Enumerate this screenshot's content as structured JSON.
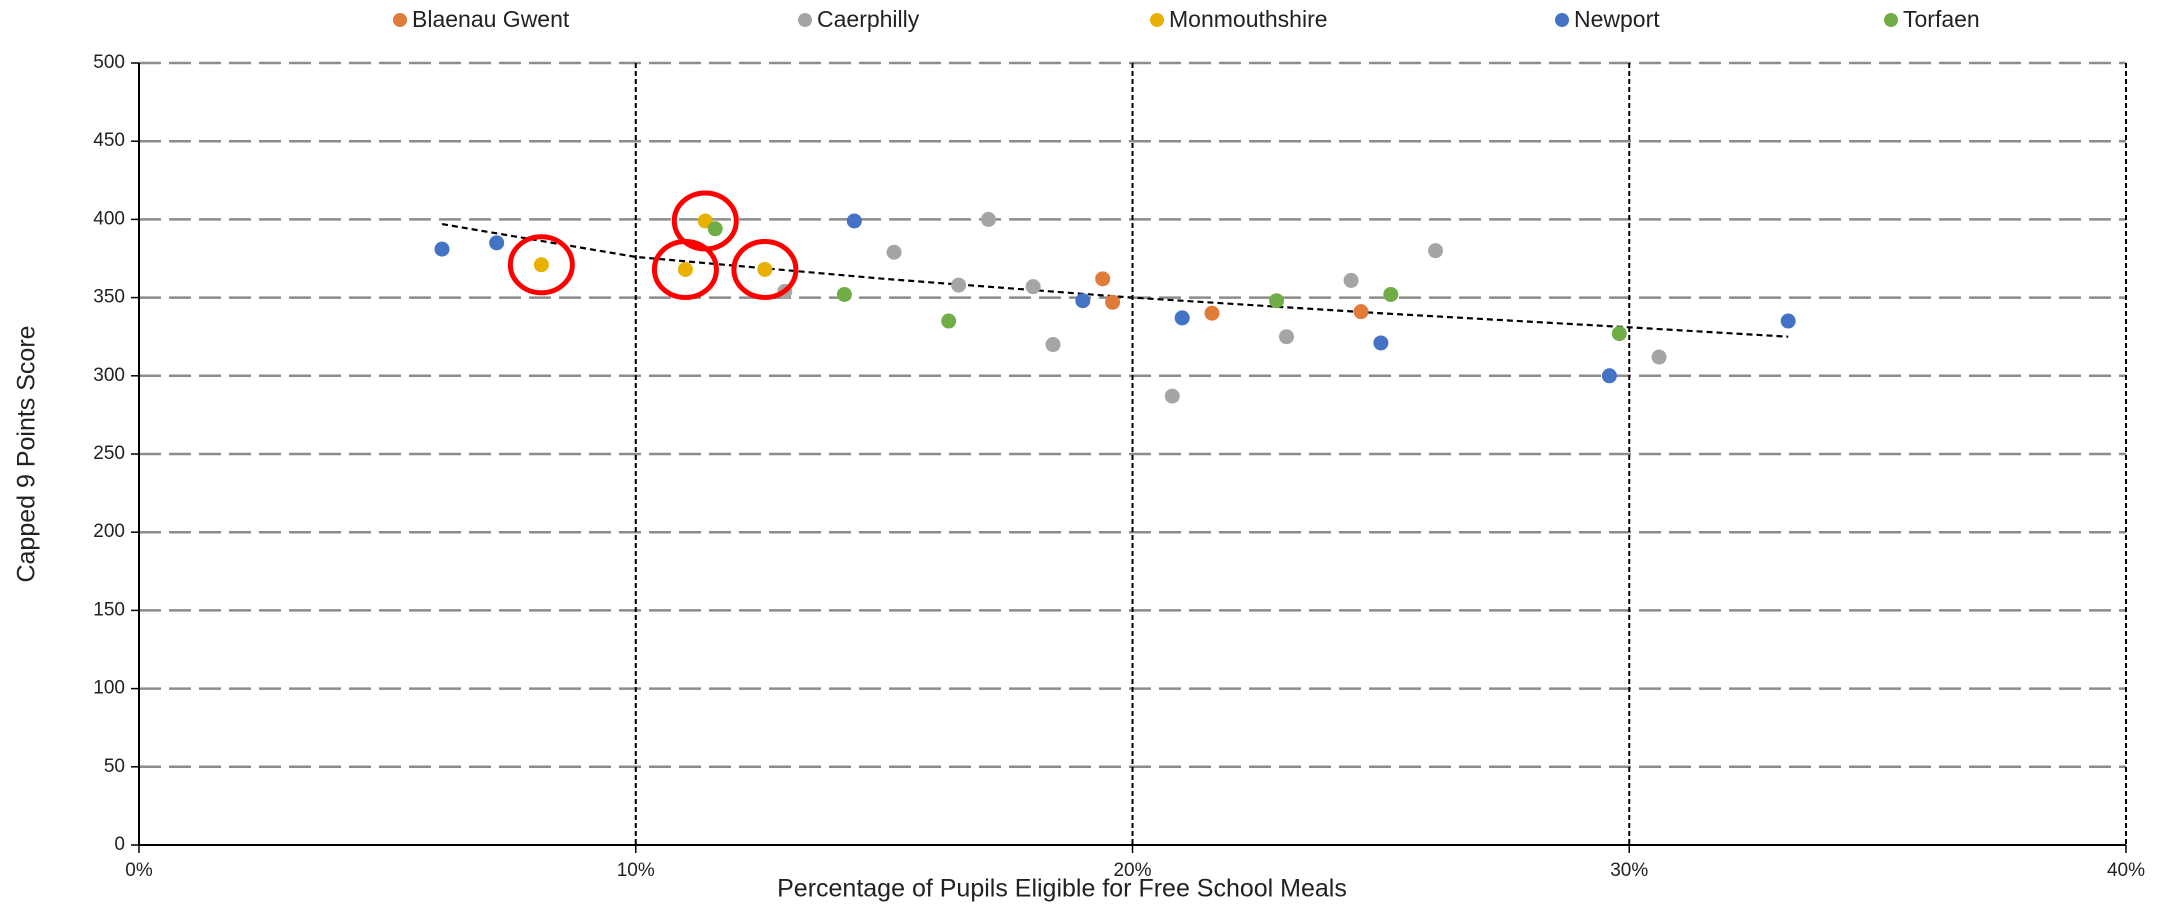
{
  "chart_data": {
    "type": "scatter",
    "xlabel": "Percentage of Pupils Eligible for Free School Meals",
    "ylabel": "Capped 9 Points Score",
    "xlim": [
      0,
      40
    ],
    "xticks": [
      {
        "value": 0,
        "label": "0%"
      },
      {
        "value": 10,
        "label": "10%"
      },
      {
        "value": 20,
        "label": "20%"
      },
      {
        "value": 30,
        "label": "30%"
      },
      {
        "value": 40,
        "label": "40%"
      }
    ],
    "ylim": [
      0,
      500
    ],
    "yticks": [
      0,
      50,
      100,
      150,
      200,
      250,
      300,
      350,
      400,
      450,
      500
    ],
    "grid": true,
    "legend": "top",
    "series": [
      {
        "name": "Blaenau Gwent",
        "color": "#e07b39",
        "x": [
          19.4,
          19.6,
          21.6,
          24.6
        ],
        "values": [
          362,
          347,
          340,
          341
        ]
      },
      {
        "name": "Caerphilly",
        "color": "#a5a5a5",
        "x": [
          15.2,
          17.1,
          16.5,
          18.0,
          18.4,
          13.0,
          20.8,
          23.1,
          24.4,
          26.1,
          30.6
        ],
        "values": [
          379,
          400,
          358,
          357,
          320,
          354,
          287,
          325,
          361,
          380,
          312
        ]
      },
      {
        "name": "Monmouthshire",
        "color": "#e8b000",
        "x": [
          8.1,
          11.0,
          11.4,
          12.6
        ],
        "values": [
          371,
          368,
          399,
          368
        ]
      },
      {
        "name": "Newport",
        "color": "#4472c4",
        "x": [
          6.1,
          7.2,
          14.4,
          19.0,
          21.0,
          25.0,
          29.6,
          33.2
        ],
        "values": [
          381,
          385,
          399,
          348,
          337,
          321,
          300,
          335
        ]
      },
      {
        "name": "Torfaen",
        "color": "#70ad47",
        "x": [
          11.6,
          14.2,
          16.3,
          22.9,
          25.2,
          29.8
        ],
        "values": [
          394,
          352,
          335,
          348,
          352,
          327
        ]
      }
    ],
    "trendline": {
      "x": [
        6.1,
        10,
        15,
        20,
        25,
        30,
        33.2
      ],
      "values": [
        397,
        376,
        362,
        350,
        340,
        331,
        325
      ]
    }
  }
}
